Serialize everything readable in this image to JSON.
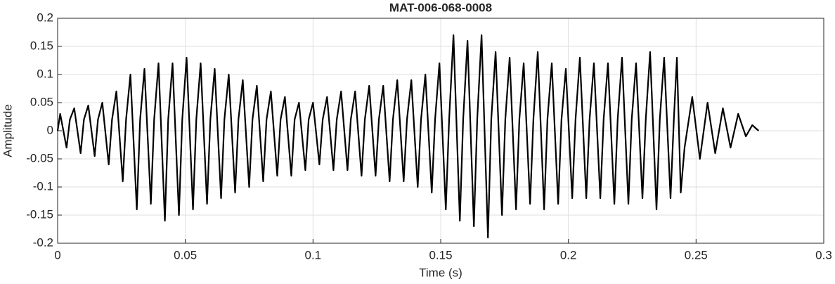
{
  "chart_data": {
    "type": "line",
    "title": "MAT-006-068-0008",
    "xlabel": "Time (s)",
    "ylabel": "Amplitude",
    "color": "#000000",
    "grid": true,
    "xlim": [
      0,
      0.3
    ],
    "xticks": [
      0,
      0.05,
      0.1,
      0.15,
      0.2,
      0.25,
      0.3
    ],
    "ylim": [
      -0.2,
      0.2
    ],
    "yticks": [
      -0.2,
      -0.15,
      -0.1,
      -0.05,
      0,
      0.05,
      0.1,
      0.15,
      0.2
    ],
    "x": [
      0,
      0.001,
      0.0035,
      0.0048,
      0.0065,
      0.009,
      0.0103,
      0.012,
      0.0145,
      0.0158,
      0.0175,
      0.02,
      0.0213,
      0.023,
      0.0255,
      0.0268,
      0.0285,
      0.031,
      0.0323,
      0.034,
      0.0365,
      0.0378,
      0.0395,
      0.042,
      0.0433,
      0.045,
      0.0475,
      0.0488,
      0.0505,
      0.053,
      0.0543,
      0.056,
      0.0585,
      0.0598,
      0.0615,
      0.064,
      0.0653,
      0.067,
      0.0695,
      0.0708,
      0.0725,
      0.075,
      0.0763,
      0.078,
      0.0805,
      0.0818,
      0.0835,
      0.086,
      0.0873,
      0.089,
      0.0915,
      0.0928,
      0.0945,
      0.097,
      0.0983,
      0.1,
      0.1025,
      0.1038,
      0.1055,
      0.108,
      0.1093,
      0.111,
      0.1135,
      0.1148,
      0.1165,
      0.119,
      0.1203,
      0.122,
      0.1245,
      0.1258,
      0.1275,
      0.13,
      0.1313,
      0.133,
      0.1355,
      0.1368,
      0.1385,
      0.141,
      0.1423,
      0.144,
      0.1465,
      0.1478,
      0.1495,
      0.152,
      0.1533,
      0.155,
      0.1575,
      0.1588,
      0.1605,
      0.163,
      0.1643,
      0.166,
      0.1685,
      0.1698,
      0.1715,
      0.174,
      0.1753,
      0.177,
      0.1795,
      0.1808,
      0.1825,
      0.185,
      0.1863,
      0.188,
      0.1905,
      0.1918,
      0.1935,
      0.196,
      0.1973,
      0.199,
      0.2015,
      0.2028,
      0.2045,
      0.207,
      0.2083,
      0.21,
      0.2125,
      0.2138,
      0.2155,
      0.218,
      0.2193,
      0.221,
      0.2235,
      0.2248,
      0.2265,
      0.229,
      0.2303,
      0.232,
      0.2345,
      0.2358,
      0.2375,
      0.24,
      0.2413,
      0.2425,
      0.244,
      0.2455,
      0.2485,
      0.2515,
      0.2545,
      0.2575,
      0.2605,
      0.2635,
      0.2665,
      0.2695,
      0.272,
      0.2745
    ],
    "values": [
      0,
      0.03,
      -0.03,
      0.02,
      0.04,
      -0.04,
      0.02,
      0.045,
      -0.045,
      0.02,
      0.05,
      -0.06,
      0.02,
      0.07,
      -0.09,
      0.02,
      0.1,
      -0.14,
      0.02,
      0.11,
      -0.13,
      0.02,
      0.12,
      -0.16,
      0.02,
      0.12,
      -0.15,
      0.02,
      0.13,
      -0.14,
      0.02,
      0.12,
      -0.13,
      0.02,
      0.11,
      -0.12,
      0.02,
      0.1,
      -0.11,
      0.02,
      0.09,
      -0.1,
      0.02,
      0.08,
      -0.09,
      0.02,
      0.07,
      -0.08,
      0.02,
      0.06,
      -0.08,
      0.02,
      0.05,
      -0.07,
      0.02,
      0.05,
      -0.06,
      0.02,
      0.06,
      -0.07,
      0.02,
      0.07,
      -0.07,
      0.02,
      0.07,
      -0.08,
      0.02,
      0.08,
      -0.08,
      0.02,
      0.08,
      -0.09,
      0.02,
      0.09,
      -0.09,
      0.02,
      0.09,
      -0.1,
      0.02,
      0.1,
      -0.11,
      0.02,
      0.12,
      -0.14,
      0.02,
      0.17,
      -0.16,
      0.02,
      0.16,
      -0.17,
      0.02,
      0.17,
      -0.19,
      0.02,
      0.14,
      -0.15,
      0.02,
      0.13,
      -0.14,
      0.02,
      0.12,
      -0.13,
      0.02,
      0.14,
      -0.14,
      0.02,
      0.12,
      -0.13,
      0.02,
      0.11,
      -0.12,
      0.02,
      0.13,
      -0.12,
      0.02,
      0.12,
      -0.12,
      0.02,
      0.12,
      -0.13,
      0.02,
      0.13,
      -0.13,
      0.02,
      0.12,
      -0.12,
      0.02,
      0.14,
      -0.14,
      0.02,
      0.13,
      -0.12,
      0.02,
      0.13,
      -0.11,
      -0.03,
      0.06,
      -0.05,
      0.05,
      -0.04,
      0.04,
      -0.03,
      0.03,
      -0.01,
      0.01,
      0
    ]
  }
}
